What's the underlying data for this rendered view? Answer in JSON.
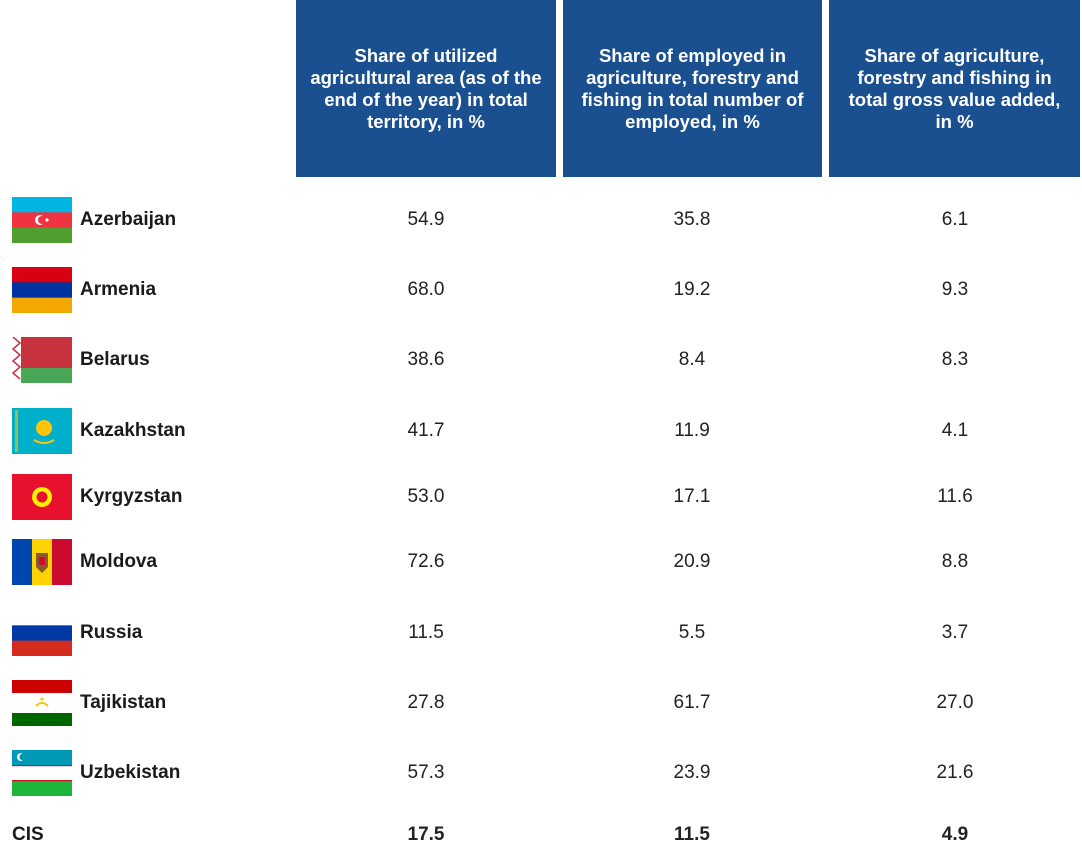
{
  "table": {
    "headers": [
      "Share of utilized agricultural area (as of the end of the year) in total territory, in %",
      "Share of employed in agriculture, forestry and fishing in total number of employed, in %",
      "Share of agriculture, forestry and fishing in total gross value added, in %"
    ],
    "rows": [
      [
        "Azerbaijan",
        "54.9",
        "35.8",
        "6.1"
      ],
      [
        "Armenia",
        "68.0",
        "19.2",
        "9.3"
      ],
      [
        "Belarus",
        "38.6",
        "8.4",
        "8.3"
      ],
      [
        "Kazakhstan",
        "41.7",
        "11.9",
        "4.1"
      ],
      [
        "Kyrgyzstan",
        "53.0",
        "17.1",
        "11.6"
      ],
      [
        "Moldova",
        "72.6",
        "20.9",
        "8.8"
      ],
      [
        "Russia",
        "11.5",
        "5.5",
        "3.7"
      ],
      [
        "Tajikistan",
        "27.8",
        "61.7",
        "27.0"
      ],
      [
        "Uzbekistan",
        "57.3",
        "23.9",
        "21.6"
      ],
      [
        "CIS",
        "17.5",
        "11.5",
        "4.9"
      ]
    ]
  }
}
